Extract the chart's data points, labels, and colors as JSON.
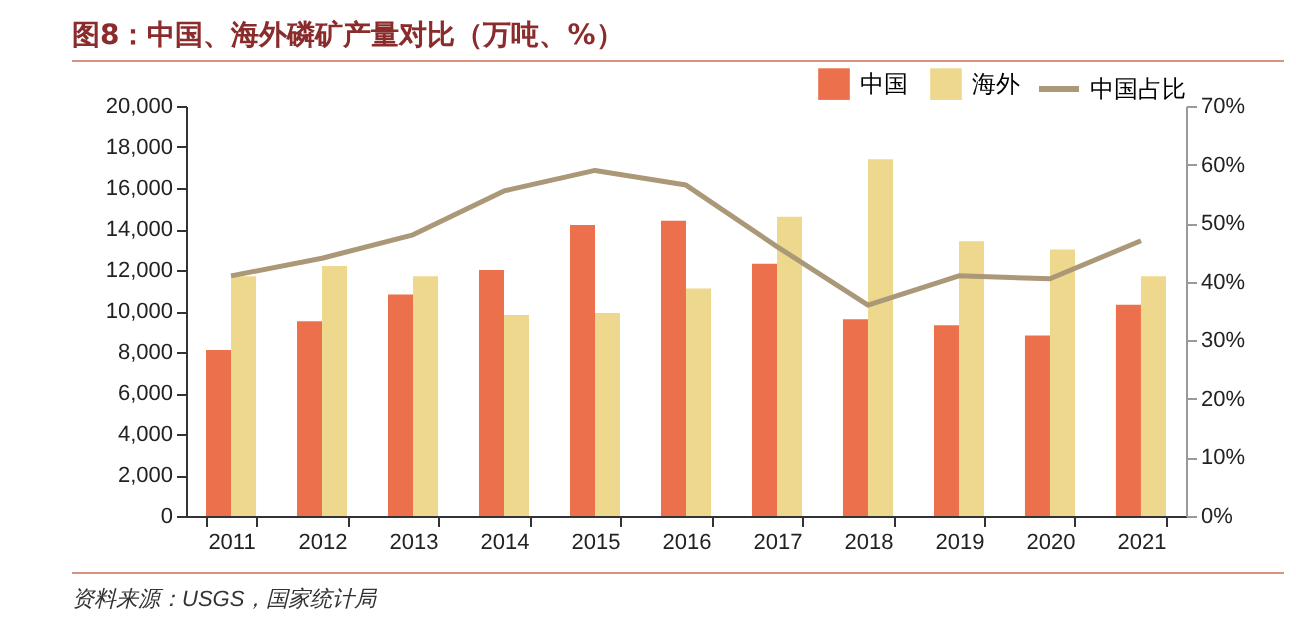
{
  "chart_data": {
    "type": "bar",
    "title": "图8：中国、海外磷矿产量对比（万吨、%）",
    "categories": [
      "2011",
      "2012",
      "2013",
      "2014",
      "2015",
      "2016",
      "2017",
      "2018",
      "2019",
      "2020",
      "2021"
    ],
    "series": [
      {
        "name": "中国",
        "color": "#ec704b",
        "values": [
          8100,
          9500,
          10800,
          12000,
          14200,
          14400,
          12300,
          9600,
          9300,
          8800,
          10300
        ]
      },
      {
        "name": "海外",
        "color": "#eed88d",
        "values": [
          11700,
          12200,
          11700,
          9800,
          9900,
          11100,
          14600,
          17400,
          13400,
          13000,
          11700
        ]
      },
      {
        "name": "中国占比",
        "type": "line",
        "axis": "y2",
        "color": "#ab9878",
        "values": [
          41,
          44,
          48,
          55.5,
          59,
          56.5,
          46,
          36,
          41,
          40.5,
          47
        ]
      }
    ],
    "ylim": [
      0,
      20000
    ],
    "yticks": [
      {
        "value": 0,
        "label": "0"
      },
      {
        "value": 2000,
        "label": "2,000"
      },
      {
        "value": 4000,
        "label": "4,000"
      },
      {
        "value": 6000,
        "label": "6,000"
      },
      {
        "value": 8000,
        "label": "8,000"
      },
      {
        "value": 10000,
        "label": "10,000"
      },
      {
        "value": 12000,
        "label": "12,000"
      },
      {
        "value": 14000,
        "label": "14,000"
      },
      {
        "value": 16000,
        "label": "16,000"
      },
      {
        "value": 18000,
        "label": "18,000"
      },
      {
        "value": 20000,
        "label": "20,000"
      }
    ],
    "y2lim": [
      0,
      70
    ],
    "y2ticks": [
      {
        "value": 0,
        "label": "0%"
      },
      {
        "value": 10,
        "label": "10%"
      },
      {
        "value": 20,
        "label": "20%"
      },
      {
        "value": 30,
        "label": "30%"
      },
      {
        "value": 40,
        "label": "40%"
      },
      {
        "value": 50,
        "label": "50%"
      },
      {
        "value": 60,
        "label": "60%"
      },
      {
        "value": 70,
        "label": "70%"
      }
    ],
    "legend": "top right",
    "grid": false,
    "annotations": [
      "资料来源：USGS，国家统计局"
    ]
  }
}
